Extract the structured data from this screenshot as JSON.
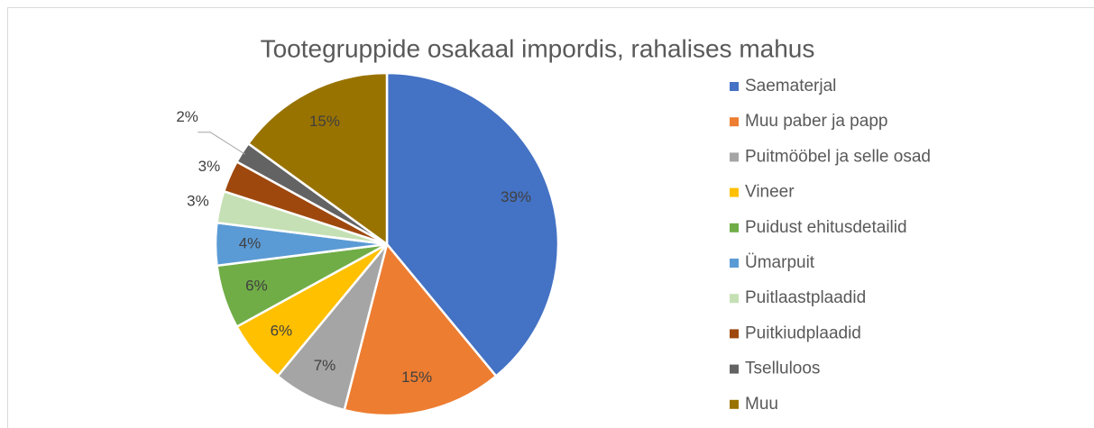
{
  "chart_data": {
    "type": "pie",
    "title": "Tootegruppide osakaal impordis, rahalises mahus",
    "categories": [
      "Saematerjal",
      "Muu paber ja papp",
      "Puitmööbel ja selle osad",
      "Vineer",
      "Puidust ehitusdetailid",
      "Ümarpuit",
      "Puitlaastplaadid",
      "Puitkiudplaadid",
      "Tselluloos",
      "Muu"
    ],
    "values": [
      39,
      15,
      7,
      6,
      6,
      4,
      3,
      3,
      2,
      15
    ],
    "value_labels": [
      "39%",
      "15%",
      "7%",
      "6%",
      "6%",
      "4%",
      "3%",
      "3%",
      "2%",
      "15%"
    ],
    "colors": [
      "#4472c4",
      "#ed7d31",
      "#a5a5a5",
      "#ffc000",
      "#70ad47",
      "#5b9bd5",
      "#c5e0b4",
      "#9e480e",
      "#636363",
      "#997300"
    ],
    "legend": "right"
  }
}
